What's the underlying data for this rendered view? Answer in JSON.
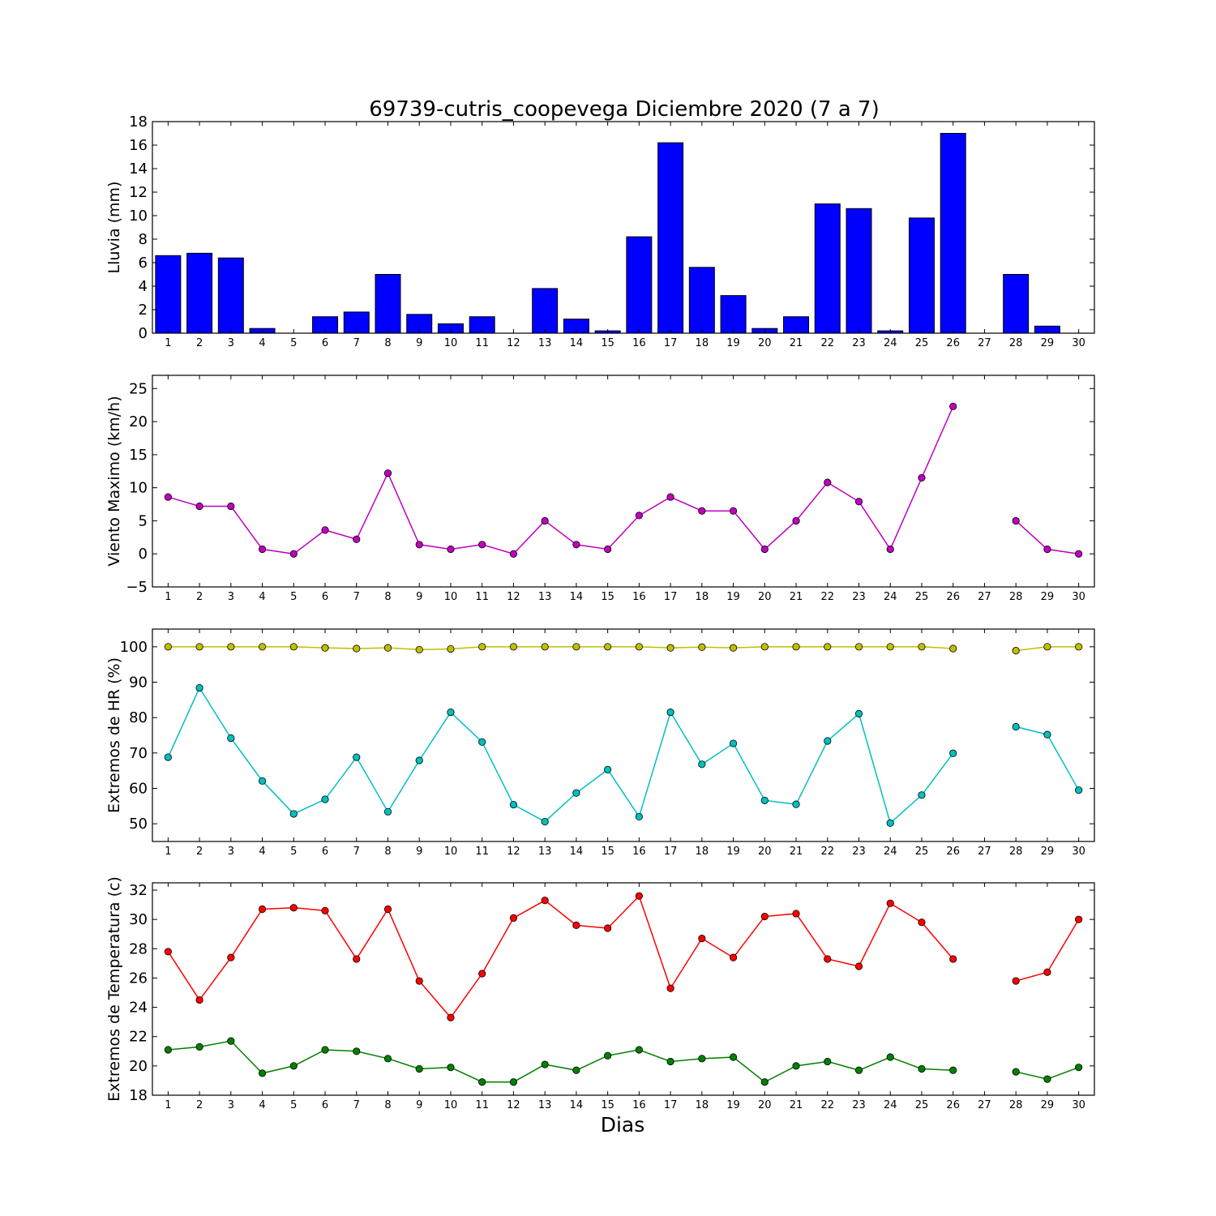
{
  "title": "69739-cutris_coopevega Diciembre 2020  (7 a 7)",
  "xlabel": "Dias",
  "colors": {
    "rain": "#0000ff",
    "wind": "#bf00bf",
    "hr_max": "#bfbf00",
    "hr_min": "#00bfbf",
    "temp_max": "#ff0000",
    "temp_min": "#008000"
  },
  "chart_data": [
    {
      "type": "bar",
      "ylabel": "Lluvia (mm)",
      "ylim": [
        0,
        18
      ],
      "yticks": [
        0,
        2,
        4,
        6,
        8,
        10,
        12,
        14,
        16,
        18
      ],
      "categories": [
        1,
        2,
        3,
        4,
        5,
        6,
        7,
        8,
        9,
        10,
        11,
        12,
        13,
        14,
        15,
        16,
        17,
        18,
        19,
        20,
        21,
        22,
        23,
        24,
        25,
        26,
        27,
        28,
        29,
        30
      ],
      "series": [
        {
          "color_key": "rain",
          "values": [
            6.6,
            6.8,
            6.4,
            0.4,
            0,
            1.4,
            1.8,
            5.0,
            1.6,
            0.8,
            1.4,
            0,
            3.8,
            1.2,
            0.2,
            8.2,
            16.2,
            5.6,
            3.2,
            0.4,
            1.4,
            11.0,
            10.6,
            0.2,
            9.8,
            17.0,
            null,
            5.0,
            0.6,
            0
          ]
        }
      ]
    },
    {
      "type": "line",
      "ylabel": "Viento Maximo (km/h)",
      "ylim": [
        -5,
        27
      ],
      "yticks": [
        -5,
        0,
        5,
        10,
        15,
        20,
        25
      ],
      "ytick_labels": [
        "−5",
        "0",
        "5",
        "10",
        "15",
        "20",
        "25"
      ],
      "categories": [
        1,
        2,
        3,
        4,
        5,
        6,
        7,
        8,
        9,
        10,
        11,
        12,
        13,
        14,
        15,
        16,
        17,
        18,
        19,
        20,
        21,
        22,
        23,
        24,
        25,
        26,
        27,
        28,
        29,
        30
      ],
      "series": [
        {
          "color_key": "wind",
          "values": [
            8.6,
            7.2,
            7.2,
            0.7,
            0,
            3.6,
            2.2,
            12.2,
            1.4,
            0.7,
            1.4,
            0,
            5.0,
            1.4,
            0.7,
            5.8,
            8.6,
            6.5,
            6.5,
            0.7,
            5.0,
            10.8,
            7.9,
            0.7,
            11.5,
            22.3,
            null,
            5.0,
            0.7,
            0
          ]
        }
      ]
    },
    {
      "type": "line",
      "ylabel": "Extremos de HR (%)",
      "ylim": [
        45,
        105
      ],
      "yticks": [
        50,
        60,
        70,
        80,
        90,
        100
      ],
      "categories": [
        1,
        2,
        3,
        4,
        5,
        6,
        7,
        8,
        9,
        10,
        11,
        12,
        13,
        14,
        15,
        16,
        17,
        18,
        19,
        20,
        21,
        22,
        23,
        24,
        25,
        26,
        27,
        28,
        29,
        30
      ],
      "series": [
        {
          "color_key": "hr_max",
          "values": [
            100,
            100,
            100,
            100,
            100,
            99.7,
            99.5,
            99.7,
            99.2,
            99.4,
            100,
            100,
            100,
            100,
            100,
            100,
            99.7,
            99.9,
            99.7,
            100,
            100,
            100,
            100,
            100,
            100,
            99.5,
            null,
            98.9,
            100,
            100
          ]
        },
        {
          "color_key": "hr_min",
          "values": [
            68.8,
            88.4,
            74.2,
            62.1,
            52.8,
            56.9,
            68.8,
            53.4,
            67.9,
            81.5,
            73.1,
            55.4,
            50.6,
            58.7,
            65.3,
            52.0,
            81.5,
            66.8,
            72.7,
            56.6,
            55.5,
            73.4,
            81.1,
            50.2,
            58.1,
            69.9,
            null,
            77.4,
            75.2,
            59.5
          ]
        }
      ]
    },
    {
      "type": "line",
      "ylabel": "Extremos de Temperatura (c)",
      "ylim": [
        18,
        32.5
      ],
      "yticks": [
        18,
        20,
        22,
        24,
        26,
        28,
        30,
        32
      ],
      "categories": [
        1,
        2,
        3,
        4,
        5,
        6,
        7,
        8,
        9,
        10,
        11,
        12,
        13,
        14,
        15,
        16,
        17,
        18,
        19,
        20,
        21,
        22,
        23,
        24,
        25,
        26,
        27,
        28,
        29,
        30
      ],
      "series": [
        {
          "color_key": "temp_max",
          "values": [
            27.8,
            24.5,
            27.4,
            30.7,
            30.8,
            30.6,
            27.3,
            30.7,
            25.8,
            23.3,
            26.3,
            30.1,
            31.3,
            29.6,
            29.4,
            31.6,
            25.3,
            28.7,
            27.4,
            30.2,
            30.4,
            27.3,
            26.8,
            31.1,
            29.8,
            27.3,
            null,
            25.8,
            26.4,
            30.0
          ]
        },
        {
          "color_key": "temp_min",
          "values": [
            21.1,
            21.3,
            21.7,
            19.5,
            20.0,
            21.1,
            21.0,
            20.5,
            19.8,
            19.9,
            18.9,
            18.9,
            20.1,
            19.7,
            20.7,
            21.1,
            20.3,
            20.5,
            20.6,
            18.9,
            20.0,
            20.3,
            19.7,
            20.6,
            19.8,
            19.7,
            null,
            19.6,
            19.1,
            19.9
          ]
        }
      ]
    }
  ]
}
